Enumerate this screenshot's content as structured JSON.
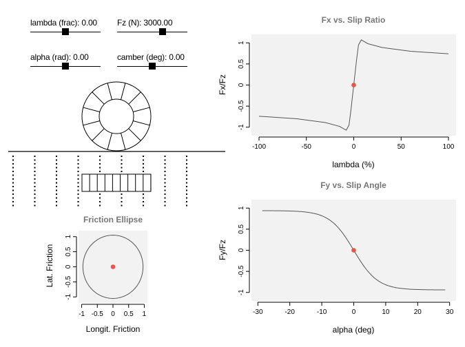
{
  "sliders": [
    {
      "label": "lambda (frac): 0.00",
      "value": 0.0,
      "min": -1,
      "max": 1
    },
    {
      "label": "Fz (N): 3000.00",
      "value": 3000,
      "min": 0,
      "max": 4500
    },
    {
      "label": "alpha (rad): 0.00",
      "value": 0.0,
      "min": -0.5,
      "max": 0.5
    },
    {
      "label": "camber (deg): 0.00",
      "value": 0.0,
      "min": -10,
      "max": 10
    }
  ],
  "chart_data": [
    {
      "id": "fx",
      "type": "line",
      "title": "Fx vs. Slip Ratio",
      "xlabel": "lambda (%)",
      "ylabel": "Fx/Fz",
      "xlim": [
        -108,
        108
      ],
      "ylim": [
        -1.2,
        1.2
      ],
      "xticks": [
        -100,
        -50,
        0,
        50,
        100
      ],
      "yticks": [
        -1,
        -0.5,
        0,
        0.5,
        1
      ],
      "xtick_labels": [
        "-100",
        "-50",
        "0",
        "50",
        "100"
      ],
      "ytick_labels": [
        "-1",
        "-0.5",
        "0",
        "0.5",
        "1"
      ],
      "series": [
        {
          "name": "Fx/Fz",
          "x_range": [
            -100,
            100
          ],
          "points": [
            [
              -100,
              -0.74
            ],
            [
              -60,
              -0.8
            ],
            [
              -30,
              -0.89
            ],
            [
              -15,
              -0.98
            ],
            [
              -8,
              -1.07
            ],
            [
              -5,
              -0.95
            ],
            [
              -3,
              -0.6
            ],
            [
              -1.5,
              -0.3
            ],
            [
              0,
              0
            ],
            [
              1.5,
              0.3
            ],
            [
              3,
              0.6
            ],
            [
              5,
              0.95
            ],
            [
              8,
              1.07
            ],
            [
              15,
              0.98
            ],
            [
              30,
              0.89
            ],
            [
              60,
              0.8
            ],
            [
              100,
              0.74
            ]
          ]
        }
      ],
      "marker": {
        "x": 0,
        "y": 0
      }
    },
    {
      "id": "fy",
      "type": "line",
      "title": "Fy vs. Slip Angle",
      "xlabel": "alpha (deg)",
      "ylabel": "Fy/Fz",
      "xlim": [
        -32,
        32
      ],
      "ylim": [
        -1.2,
        1.2
      ],
      "xticks": [
        -30,
        -20,
        -10,
        0,
        10,
        20,
        30
      ],
      "yticks": [
        -1,
        -0.5,
        0,
        0.5,
        1
      ],
      "xtick_labels": [
        "-30",
        "-20",
        "-10",
        "0",
        "10",
        "20",
        "30"
      ],
      "ytick_labels": [
        "-1",
        "-0.5",
        "0",
        "0.5",
        "1"
      ],
      "series": [
        {
          "name": "Fy/Fz",
          "x_range": [
            -28.6,
            28.6
          ],
          "peak": 0.94,
          "shape": "tanh",
          "k": 7.5
        }
      ],
      "marker": {
        "x": 0,
        "y": 0
      }
    },
    {
      "id": "ellipse",
      "type": "line",
      "title": "Friction Ellipse",
      "xlabel": "Longit. Friction",
      "ylabel": "Lat. Friction",
      "xlim": [
        -1.1,
        1.1
      ],
      "ylim": [
        -1.2,
        1.2
      ],
      "xticks": [
        -1,
        -0.5,
        0,
        0.5,
        1
      ],
      "yticks": [
        -1,
        -0.5,
        0,
        0.5,
        1
      ],
      "xtick_labels": [
        "-1",
        "-0.5",
        "0",
        "0.5",
        "1"
      ],
      "ytick_labels": [
        "-1",
        "-0.5",
        "0",
        "0.5",
        "1"
      ],
      "series": [
        {
          "name": "ellipse",
          "rx": 0.96,
          "ry": 1.05
        }
      ],
      "marker": {
        "x": 0,
        "y": 0
      }
    }
  ],
  "colors": {
    "panel_bg": "#f2f2f2",
    "curve": "#555555",
    "marker": "#e8534a",
    "title": "#777777"
  }
}
